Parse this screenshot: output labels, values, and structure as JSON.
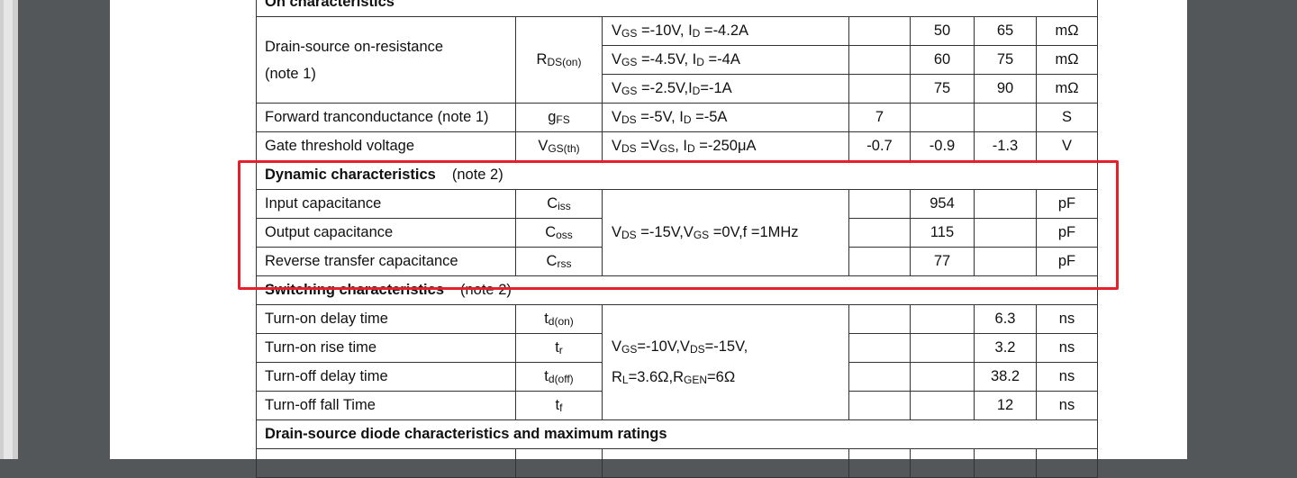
{
  "colors": {
    "highlight": "#e3202b",
    "viewer_bg": "#53575a"
  },
  "sections": [
    {
      "title": "On characteristics",
      "note": "",
      "rows": [
        {
          "param": "Drain-source on-resistance (note 1)",
          "param_lines": [
            "Drain-source on-resistance",
            "(note 1)"
          ],
          "symbol": [
            [
              "R",
              ""
            ],
            [
              "",
              "DS(on)"
            ]
          ],
          "span": 3,
          "subrows": [
            {
              "cond": [
                [
                  "V",
                  ""
                ],
                [
                  "",
                  "GS"
                ],
                [
                  " =-10V, I",
                  ""
                ],
                [
                  "",
                  "D"
                ],
                [
                  " =-4.2A",
                  ""
                ]
              ],
              "min": "",
              "typ": "50",
              "max": "65",
              "unit": "mΩ"
            },
            {
              "cond": [
                [
                  "V",
                  ""
                ],
                [
                  "",
                  "GS"
                ],
                [
                  " =-4.5V, I",
                  ""
                ],
                [
                  "",
                  "D"
                ],
                [
                  " =-4A",
                  ""
                ]
              ],
              "min": "",
              "typ": "60",
              "max": "75",
              "unit": "mΩ"
            },
            {
              "cond": [
                [
                  "V",
                  ""
                ],
                [
                  "",
                  "GS"
                ],
                [
                  " =-2.5V,I",
                  ""
                ],
                [
                  "",
                  "D"
                ],
                [
                  "=-1A",
                  ""
                ]
              ],
              "min": "",
              "typ": "75",
              "max": "90",
              "unit": "mΩ"
            }
          ]
        },
        {
          "param": "Forward tranconductance (note 1)",
          "symbol": [
            [
              "g",
              ""
            ],
            [
              "",
              "FS"
            ]
          ],
          "span": 1,
          "subrows": [
            {
              "cond": [
                [
                  "V",
                  ""
                ],
                [
                  "",
                  "DS"
                ],
                [
                  " =-5V, I",
                  ""
                ],
                [
                  "",
                  "D"
                ],
                [
                  " =-5A",
                  ""
                ]
              ],
              "min": "7",
              "typ": "",
              "max": "",
              "unit": "S"
            }
          ]
        },
        {
          "param": "Gate threshold voltage",
          "symbol": [
            [
              "V",
              ""
            ],
            [
              "",
              "GS(th)"
            ]
          ],
          "span": 1,
          "subrows": [
            {
              "cond": [
                [
                  "V",
                  ""
                ],
                [
                  "",
                  "DS"
                ],
                [
                  " =V",
                  ""
                ],
                [
                  "",
                  "GS"
                ],
                [
                  ", I",
                  ""
                ],
                [
                  "",
                  "D"
                ],
                [
                  " =-250μA",
                  ""
                ]
              ],
              "min": "-0.7",
              "typ": "-0.9",
              "max": "-1.3",
              "unit": "V"
            }
          ]
        }
      ]
    },
    {
      "title": "Dynamic characteristics",
      "note": "(note 2)",
      "shared_cond": [
        [
          [
            "V",
            ""
          ],
          [
            "",
            "DS"
          ],
          [
            " =-15V,V",
            ""
          ],
          [
            "",
            "GS"
          ],
          [
            " =0V,f =1MHz",
            ""
          ]
        ]
      ],
      "rows": [
        {
          "param": "Input capacitance",
          "symbol": [
            [
              "C",
              ""
            ],
            [
              "",
              "iss"
            ]
          ],
          "min": "",
          "typ": "954",
          "max": "",
          "unit": "pF"
        },
        {
          "param": "Output capacitance",
          "symbol": [
            [
              "C",
              ""
            ],
            [
              "",
              "oss"
            ]
          ],
          "min": "",
          "typ": "115",
          "max": "",
          "unit": "pF"
        },
        {
          "param": "Reverse transfer capacitance",
          "symbol": [
            [
              "C",
              ""
            ],
            [
              "",
              "rss"
            ]
          ],
          "min": "",
          "typ": "77",
          "max": "",
          "unit": "pF"
        }
      ]
    },
    {
      "title": "Switching characteristics",
      "note": "(note 2)",
      "shared_cond": [
        [
          [
            "V",
            ""
          ],
          [
            "",
            "GS"
          ],
          [
            "=-10V,V",
            ""
          ],
          [
            "",
            "DS"
          ],
          [
            "=-15V,",
            ""
          ]
        ],
        [
          [
            "R",
            ""
          ],
          [
            "",
            "L"
          ],
          [
            "=3.6Ω,R",
            ""
          ],
          [
            "",
            "GEN"
          ],
          [
            "=6Ω",
            ""
          ]
        ]
      ],
      "rows": [
        {
          "param": "Turn-on delay time",
          "symbol": [
            [
              "t",
              ""
            ],
            [
              "",
              "d(on)"
            ]
          ],
          "min": "",
          "typ": "",
          "max": "6.3",
          "unit": "ns"
        },
        {
          "param": "Turn-on rise time",
          "symbol": [
            [
              "t",
              ""
            ],
            [
              "",
              "r"
            ]
          ],
          "min": "",
          "typ": "",
          "max": "3.2",
          "unit": "ns"
        },
        {
          "param": "Turn-off delay time",
          "symbol": [
            [
              "t",
              ""
            ],
            [
              "",
              "d(off)"
            ]
          ],
          "min": "",
          "typ": "",
          "max": "38.2",
          "unit": "ns"
        },
        {
          "param": "Turn-off fall Time",
          "symbol": [
            [
              "t",
              ""
            ],
            [
              "",
              "f"
            ]
          ],
          "min": "",
          "typ": "",
          "max": "12",
          "unit": "ns"
        }
      ]
    },
    {
      "title": "Drain-source diode characteristics and maximum ratings",
      "note": "",
      "rows": []
    }
  ]
}
